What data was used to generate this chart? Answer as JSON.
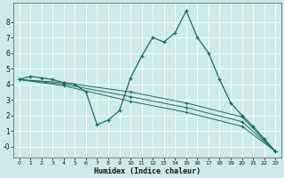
{
  "xlabel": "Humidex (Indice chaleur)",
  "bg_color": "#cceae8",
  "grid_color": "#e8f5f5",
  "line_color": "#1a6b60",
  "xlim": [
    -0.5,
    23.5
  ],
  "ylim": [
    -0.7,
    9.2
  ],
  "xticks": [
    0,
    1,
    2,
    3,
    4,
    5,
    6,
    7,
    8,
    9,
    10,
    11,
    12,
    13,
    14,
    15,
    16,
    17,
    18,
    19,
    20,
    21,
    22,
    23
  ],
  "yticks": [
    0,
    1,
    2,
    3,
    4,
    5,
    6,
    7,
    8
  ],
  "line1_x": [
    0,
    1,
    2,
    3,
    4,
    5,
    6,
    7,
    8,
    9,
    10,
    11,
    12,
    13,
    14,
    15,
    16,
    17,
    18,
    19,
    20,
    21,
    22,
    23
  ],
  "line1_y": [
    4.3,
    4.5,
    4.4,
    4.3,
    4.1,
    4.0,
    3.5,
    1.4,
    1.7,
    2.3,
    4.4,
    5.8,
    7.0,
    6.7,
    7.3,
    8.7,
    7.0,
    6.0,
    4.3,
    2.8,
    2.0,
    1.3,
    0.5,
    -0.3
  ],
  "line2_x": [
    0,
    4,
    10,
    15,
    20,
    23
  ],
  "line2_y": [
    4.3,
    4.1,
    3.5,
    2.8,
    1.9,
    -0.3
  ],
  "line3_x": [
    0,
    4,
    10,
    15,
    20,
    23
  ],
  "line3_y": [
    4.3,
    4.0,
    3.2,
    2.5,
    1.6,
    -0.3
  ],
  "line4_x": [
    0,
    4,
    10,
    15,
    20,
    23
  ],
  "line4_y": [
    4.3,
    3.9,
    2.9,
    2.2,
    1.3,
    -0.3
  ]
}
